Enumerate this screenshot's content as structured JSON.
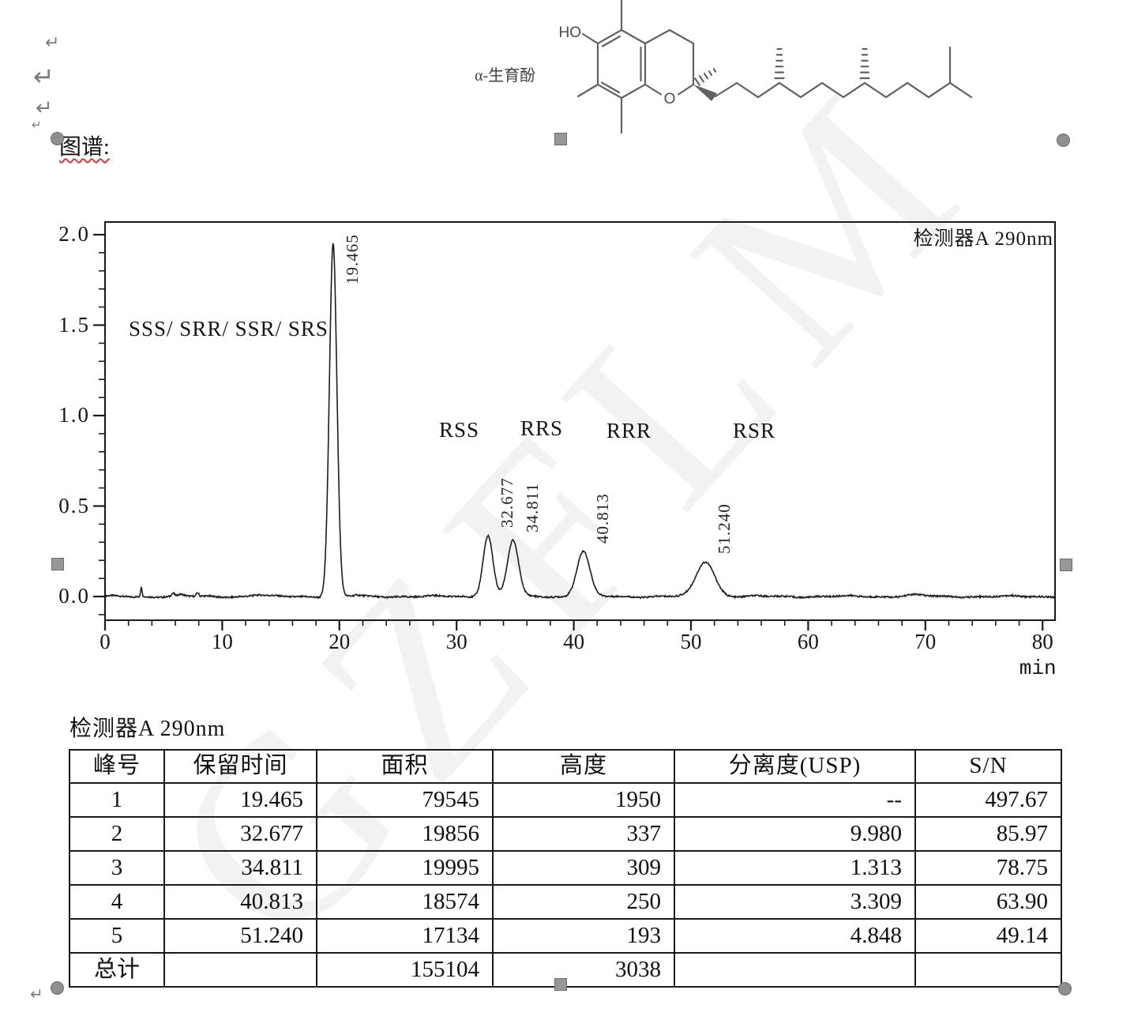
{
  "doc": {
    "spectrum_label": "图谱:",
    "watermark": "GZFLM",
    "paragraph_mark": "↵"
  },
  "molecule": {
    "name_label": "α-生育酚",
    "hydroxyl_label": "HO",
    "ring_oxygen_label": "O"
  },
  "chart_data": {
    "type": "line",
    "title": "检测器A 290nm",
    "detector_label": "检测器A 290nm",
    "xlabel": "min",
    "ylabel": "",
    "xlim": [
      0,
      81.1
    ],
    "ylim": [
      -0.13,
      2.07
    ],
    "x_ticks": [
      0,
      10,
      20,
      30,
      40,
      50,
      60,
      70,
      80
    ],
    "x_minor_step": 2,
    "y_ticks": [
      "0.0",
      "0.5",
      "1.0",
      "1.5",
      "2.0"
    ],
    "y_minor_step": 0.1,
    "grid": false,
    "peaks": [
      {
        "rt": 19.465,
        "rt_label": "19.465",
        "height_au": 1.95,
        "sigma": 0.32,
        "isomer": "SSS/ SRR/ SSR/ SRS"
      },
      {
        "rt": 32.677,
        "rt_label": "32.677",
        "height_au": 0.337,
        "sigma": 0.42,
        "isomer": "RSS"
      },
      {
        "rt": 34.811,
        "rt_label": "34.811",
        "height_au": 0.309,
        "sigma": 0.47,
        "isomer": "RRS"
      },
      {
        "rt": 40.813,
        "rt_label": "40.813",
        "height_au": 0.25,
        "sigma": 0.55,
        "isomer": "RRR"
      },
      {
        "rt": 51.24,
        "rt_label": "51.240",
        "height_au": 0.193,
        "sigma": 0.78,
        "isomer": "RSR"
      }
    ],
    "noise_peaks": [
      {
        "rt": 3.1,
        "h": 0.052,
        "sigma": 0.07
      },
      {
        "rt": 5.8,
        "h": 0.016,
        "sigma": 0.12
      },
      {
        "rt": 6.5,
        "h": 0.008,
        "sigma": 0.25
      },
      {
        "rt": 7.9,
        "h": 0.02,
        "sigma": 0.1
      },
      {
        "rt": 13.0,
        "h": 0.009,
        "sigma": 0.5
      },
      {
        "rt": 21.5,
        "h": 0.006,
        "sigma": 0.3
      },
      {
        "rt": 69.0,
        "h": 0.008,
        "sigma": 0.8
      }
    ]
  },
  "table": {
    "caption": "检测器A 290nm",
    "headers": [
      "峰号",
      "保留时间",
      "面积",
      "高度",
      "分离度(USP)",
      "S/N"
    ],
    "rows": [
      [
        "1",
        "19.465",
        "79545",
        "1950",
        "--",
        "497.67"
      ],
      [
        "2",
        "32.677",
        "19856",
        "337",
        "9.980",
        "85.97"
      ],
      [
        "3",
        "34.811",
        "19995",
        "309",
        "1.313",
        "78.75"
      ],
      [
        "4",
        "40.813",
        "18574",
        "250",
        "3.309",
        "63.90"
      ],
      [
        "5",
        "51.240",
        "17134",
        "193",
        "4.848",
        "49.14"
      ],
      [
        "总计",
        "",
        "155104",
        "3038",
        "",
        ""
      ]
    ]
  }
}
